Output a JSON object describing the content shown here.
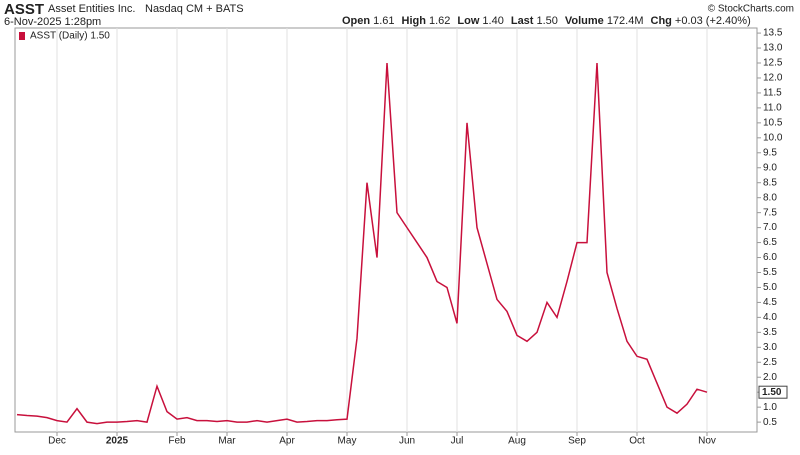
{
  "header": {
    "symbol": "ASST",
    "name": "Asset Entities Inc.",
    "exchange": "Nasdaq CM + BATS",
    "datetime": "6-Nov-2025 1:28pm",
    "quote": [
      [
        "Open",
        "1.61"
      ],
      [
        "High",
        "1.62"
      ],
      [
        "Low",
        "1.40"
      ],
      [
        "Last",
        "1.50"
      ],
      [
        "Volume",
        "172.4M"
      ],
      [
        "Chg",
        "+0.03 (+2.40%)"
      ]
    ],
    "credit": "© StockCharts.com"
  },
  "chart_data": {
    "type": "line",
    "categories": [
      null,
      null,
      null,
      null,
      "Dec",
      null,
      null,
      null,
      null,
      null,
      "2025",
      null,
      null,
      null,
      null,
      null,
      "Feb",
      null,
      null,
      null,
      null,
      "Mar",
      null,
      null,
      null,
      null,
      null,
      "Apr",
      null,
      null,
      null,
      null,
      null,
      "May",
      null,
      null,
      null,
      null,
      null,
      "Jun",
      null,
      null,
      null,
      null,
      "Jul",
      null,
      null,
      null,
      null,
      null,
      "Aug",
      null,
      null,
      null,
      null,
      null,
      "Sep",
      null,
      null,
      null,
      null,
      null,
      "Oct",
      null,
      null,
      null,
      null,
      null,
      null,
      "Nov"
    ],
    "series": [
      {
        "name": "ASST (Daily) 1.50",
        "color": "#c8103c",
        "values": [
          0.75,
          0.72,
          0.7,
          0.65,
          0.55,
          0.5,
          0.95,
          0.5,
          0.45,
          0.5,
          0.5,
          0.52,
          0.55,
          0.5,
          1.7,
          0.85,
          0.6,
          0.65,
          0.55,
          0.55,
          0.52,
          0.55,
          0.5,
          0.5,
          0.55,
          0.5,
          0.55,
          0.6,
          0.5,
          0.52,
          0.55,
          0.55,
          0.58,
          0.6,
          3.3,
          8.5,
          6.0,
          12.5,
          7.5,
          7.0,
          6.5,
          6.0,
          5.2,
          5.0,
          3.8,
          10.5,
          7.0,
          5.8,
          4.6,
          4.2,
          3.4,
          3.2,
          3.5,
          4.5,
          4.0,
          5.2,
          6.5,
          6.5,
          12.5,
          5.5,
          4.3,
          3.2,
          2.7,
          2.6,
          1.8,
          1.0,
          0.8,
          1.1,
          1.6,
          1.5
        ]
      }
    ],
    "last_value": 1.5,
    "last_label": "1.50",
    "ylim": [
      0.17,
      13.67
    ],
    "yticks": [
      {
        "value": 0.5,
        "label": "0.5"
      },
      {
        "value": 1,
        "label": "1.0"
      },
      {
        "value": 1.5,
        "label": "1.5"
      },
      {
        "value": 2,
        "label": "2.0"
      },
      {
        "value": 2.5,
        "label": "2.5"
      },
      {
        "value": 3,
        "label": "3.0"
      },
      {
        "value": 3.5,
        "label": "3.5"
      },
      {
        "value": 4,
        "label": "4.0"
      },
      {
        "value": 4.5,
        "label": "4.5"
      },
      {
        "value": 5,
        "label": "5.0"
      },
      {
        "value": 5.5,
        "label": "5.5"
      },
      {
        "value": 6,
        "label": "6.0"
      },
      {
        "value": 6.5,
        "label": "6.5"
      },
      {
        "value": 7,
        "label": "7.0"
      },
      {
        "value": 7.5,
        "label": "7.5"
      },
      {
        "value": 8,
        "label": "8.0"
      },
      {
        "value": 8.5,
        "label": "8.5"
      },
      {
        "value": 9,
        "label": "9.0"
      },
      {
        "value": 9.5,
        "label": "9.5"
      },
      {
        "value": 10,
        "label": "10.0"
      },
      {
        "value": 10.5,
        "label": "10.5"
      },
      {
        "value": 11,
        "label": "11.0"
      },
      {
        "value": 11.5,
        "label": "11.5"
      },
      {
        "value": 12,
        "label": "12.0"
      },
      {
        "value": 12.5,
        "label": "12.5"
      },
      {
        "value": 13,
        "label": "13.0"
      },
      {
        "value": 13.5,
        "label": "13.5"
      }
    ],
    "grid": true
  }
}
